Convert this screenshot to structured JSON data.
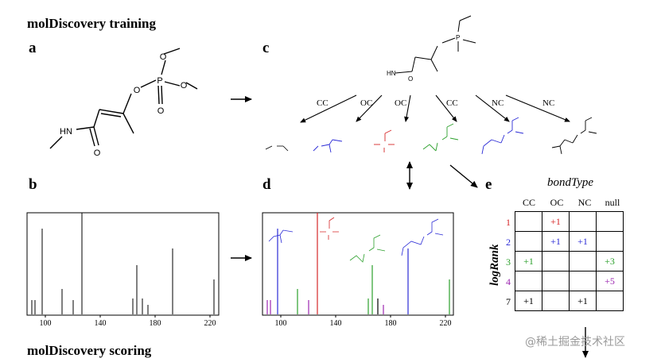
{
  "titles": {
    "top": "molDiscovery training",
    "bottom": "molDiscovery scoring"
  },
  "panels": {
    "a": "a",
    "b": "b",
    "c": "c",
    "d": "d",
    "e": "e"
  },
  "molecule_labels": {
    "hn": "HN",
    "o": "O",
    "p": "P"
  },
  "fragment_edges": [
    "CC",
    "OC",
    "OC",
    "CC",
    "NC",
    "NC"
  ],
  "spectrum_ticks": [
    "100",
    "140",
    "180",
    "220"
  ],
  "spectrum_ticks_d": [
    "100",
    "140",
    "180",
    "220"
  ],
  "bond_table": {
    "title": "bondType",
    "row_axis": "logRank",
    "columns": [
      "CC",
      "OC",
      "NC",
      "null"
    ],
    "rows": [
      {
        "rank": "1",
        "color": "#d62728",
        "cells": [
          "",
          "+1",
          "",
          ""
        ]
      },
      {
        "rank": "2",
        "color": "#2b2bd6",
        "cells": [
          "",
          "+1",
          "+1",
          ""
        ]
      },
      {
        "rank": "3",
        "color": "#2ca02c",
        "cells": [
          "+1",
          "",
          "",
          "+3"
        ]
      },
      {
        "rank": "4",
        "color": "#9c27b0",
        "cells": [
          "",
          "",
          "",
          "+5"
        ]
      },
      {
        "rank": "7",
        "color": "#000000",
        "cells": [
          "+1",
          "",
          "+1",
          ""
        ]
      }
    ]
  },
  "watermark": "@稀土掘金技术社区",
  "colors": {
    "red": "#d62728",
    "blue": "#2b2bd6",
    "green": "#2ca02c",
    "purple": "#9c27b0"
  }
}
